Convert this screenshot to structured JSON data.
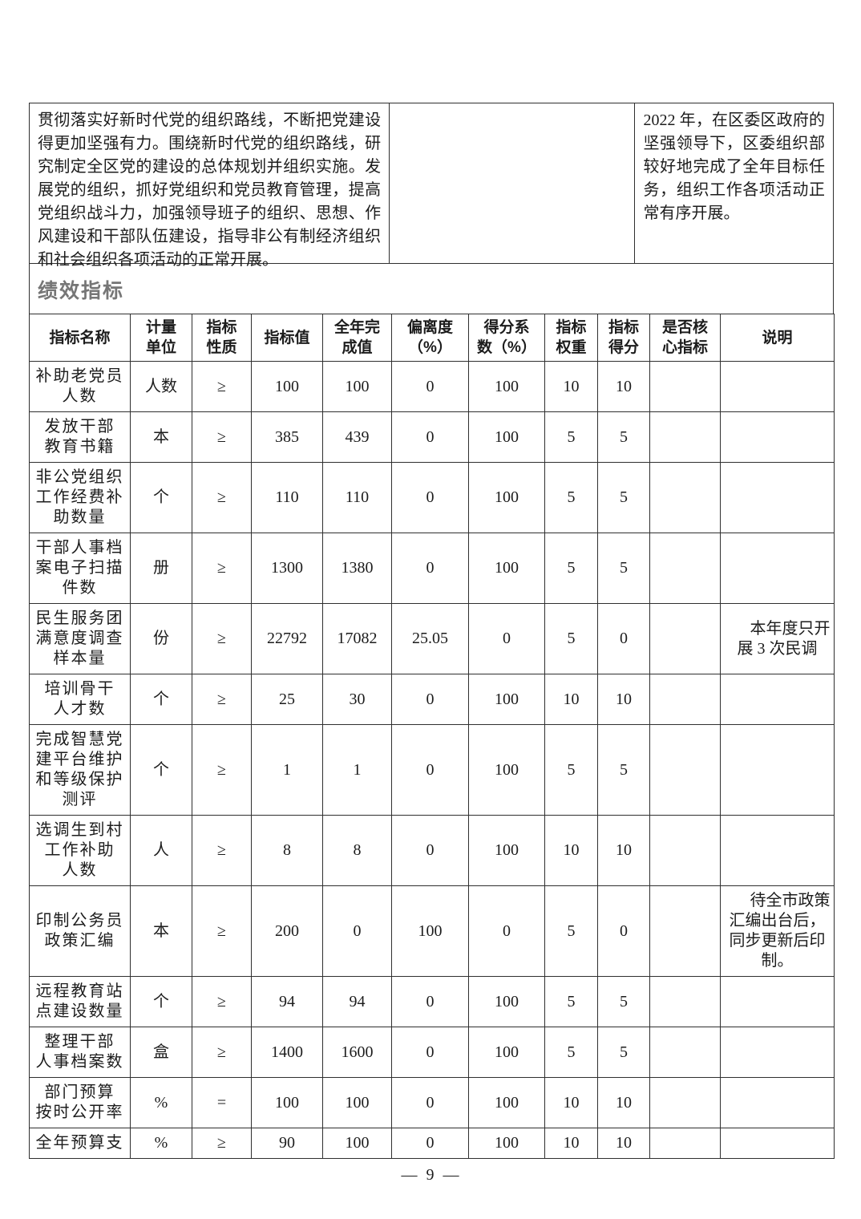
{
  "intro": {
    "left_paragraph": "贯彻落实好新时代党的组织路线，不断把党建设得更加坚强有力。围绕新时代党的组织路线，研究制定全区党的建设的总体规划并组织实施。发展党的组织，抓好党组织和党员教育管理，提高党组织战斗力，加强领导班子的组织、思想、作风建设和干部队伍建设，指导非公有制经济组织和社会组织各项活动的正常开展。",
    "middle_cell": "",
    "right_paragraph": "2022 年，在区委区政府的坚强领导下，区委组织部较好地完成了全年目标任务，组织工作各项活动正常有序开展。"
  },
  "section_title": "绩效指标",
  "table": {
    "column_keys": [
      "name",
      "unit",
      "nature",
      "target",
      "completed",
      "deviation",
      "coefficient",
      "weight",
      "score",
      "core",
      "note"
    ],
    "headers": {
      "name": "指标名称",
      "unit": "计量\n单位",
      "nature": "指标\n性质",
      "target": "指标值",
      "completed": "全年完\n成值",
      "deviation": "偏离度\n（%）",
      "coefficient": "得分系\n数（%）",
      "weight": "指标\n权重",
      "score": "指标\n得分",
      "core": "是否核\n心指标",
      "note": "说明"
    },
    "rows": [
      {
        "name": "补助老党员\n人数",
        "unit": "人数",
        "nature": "≥",
        "target": "100",
        "completed": "100",
        "deviation": "0",
        "coefficient": "100",
        "weight": "10",
        "score": "10",
        "core": "",
        "note": ""
      },
      {
        "name": "发放干部\n教育书籍",
        "unit": "本",
        "nature": "≥",
        "target": "385",
        "completed": "439",
        "deviation": "0",
        "coefficient": "100",
        "weight": "5",
        "score": "5",
        "core": "",
        "note": ""
      },
      {
        "name": "非公党组织\n工作经费补\n助数量",
        "unit": "个",
        "nature": "≥",
        "target": "110",
        "completed": "110",
        "deviation": "0",
        "coefficient": "100",
        "weight": "5",
        "score": "5",
        "core": "",
        "note": ""
      },
      {
        "name": "干部人事档\n案电子扫描\n件数",
        "unit": "册",
        "nature": "≥",
        "target": "1300",
        "completed": "1380",
        "deviation": "0",
        "coefficient": "100",
        "weight": "5",
        "score": "5",
        "core": "",
        "note": ""
      },
      {
        "name": "民生服务团\n满意度调查\n样本量",
        "unit": "份",
        "nature": "≥",
        "target": "22792",
        "completed": "17082",
        "deviation": "25.05",
        "coefficient": "0",
        "weight": "5",
        "score": "0",
        "core": "",
        "note": "本年度只开展 3 次民调"
      },
      {
        "name": "培训骨干\n人才数",
        "unit": "个",
        "nature": "≥",
        "target": "25",
        "completed": "30",
        "deviation": "0",
        "coefficient": "100",
        "weight": "10",
        "score": "10",
        "core": "",
        "note": ""
      },
      {
        "name": "完成智慧党\n建平台维护\n和等级保护\n测评",
        "unit": "个",
        "nature": "≥",
        "target": "1",
        "completed": "1",
        "deviation": "0",
        "coefficient": "100",
        "weight": "5",
        "score": "5",
        "core": "",
        "note": ""
      },
      {
        "name": "选调生到村\n工作补助\n人数",
        "unit": "人",
        "nature": "≥",
        "target": "8",
        "completed": "8",
        "deviation": "0",
        "coefficient": "100",
        "weight": "10",
        "score": "10",
        "core": "",
        "note": ""
      },
      {
        "name": "印制公务员\n政策汇编",
        "unit": "本",
        "nature": "≥",
        "target": "200",
        "completed": "0",
        "deviation": "100",
        "coefficient": "0",
        "weight": "5",
        "score": "0",
        "core": "",
        "note": "待全市政策汇编出台后，同步更新后印制。"
      },
      {
        "name": "远程教育站\n点建设数量",
        "unit": "个",
        "nature": "≥",
        "target": "94",
        "completed": "94",
        "deviation": "0",
        "coefficient": "100",
        "weight": "5",
        "score": "5",
        "core": "",
        "note": ""
      },
      {
        "name": "整理干部\n人事档案数",
        "unit": "盒",
        "nature": "≥",
        "target": "1400",
        "completed": "1600",
        "deviation": "0",
        "coefficient": "100",
        "weight": "5",
        "score": "5",
        "core": "",
        "note": ""
      },
      {
        "name": "部门预算\n按时公开率",
        "unit": "%",
        "nature": "=",
        "target": "100",
        "completed": "100",
        "deviation": "0",
        "coefficient": "100",
        "weight": "10",
        "score": "10",
        "core": "",
        "note": ""
      },
      {
        "name": "全年预算支",
        "unit": "%",
        "nature": "≥",
        "target": "90",
        "completed": "100",
        "deviation": "0",
        "coefficient": "100",
        "weight": "10",
        "score": "10",
        "core": "",
        "note": ""
      }
    ]
  },
  "footer": {
    "page_number": "— 9 —"
  }
}
